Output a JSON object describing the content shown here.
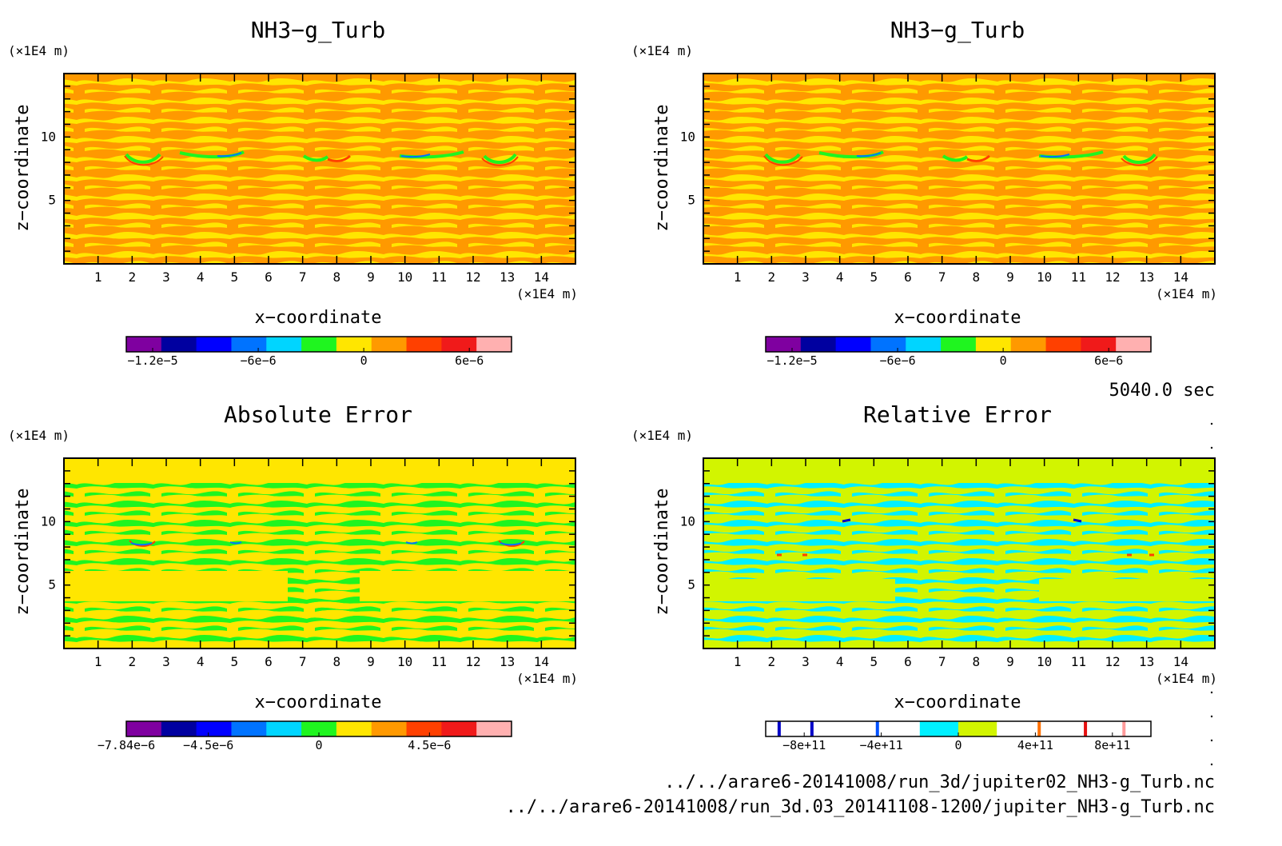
{
  "figure": {
    "time_label": "5040.0 sec",
    "file_lines": [
      "../../arare6-20141008/run_3d/jupiter02_NH3-g_Turb.nc",
      "../../arare6-20141008/run_3d.03_20141108-1200/jupiter_NH3-g_Turb.nc"
    ]
  },
  "chart_data": [
    {
      "type": "heatmap",
      "title": "NH3−g_Turb",
      "xlabel": "x−coordinate",
      "ylabel": "z−coordinate",
      "x_unit": "(×1E4 m)",
      "y_unit": "(×1E4 m)",
      "x_ticks": [
        "1",
        "2",
        "3",
        "4",
        "5",
        "6",
        "7",
        "8",
        "9",
        "10",
        "11",
        "12",
        "13",
        "14"
      ],
      "y_ticks": [
        "5",
        "10"
      ],
      "xlim": [
        0,
        15
      ],
      "ylim": [
        0,
        15
      ],
      "colorbar": {
        "colors": [
          "#7f00a0",
          "#0000a0",
          "#0000ff",
          "#0073ff",
          "#00d5ff",
          "#1ff51f",
          "#ffe600",
          "#ff9900",
          "#ff4000",
          "#f01a1a",
          "#ffb0b0"
        ],
        "tick_labels": [
          "−1.2e−5",
          "−6e−6",
          "0",
          "6e−6"
        ],
        "tick_values": [
          -1.2e-05,
          -6e-06,
          0,
          6e-06
        ],
        "range": [
          -1.35e-05,
          8.4e-06
        ]
      },
      "dominant_colors": [
        "#ff9900",
        "#ffe600"
      ],
      "feature_colors": [
        "#1ff51f",
        "#0073ff",
        "#ff4000"
      ]
    },
    {
      "type": "heatmap",
      "title": "NH3−g_Turb",
      "xlabel": "x−coordinate",
      "ylabel": "z−coordinate",
      "x_unit": "(×1E4 m)",
      "y_unit": "(×1E4 m)",
      "x_ticks": [
        "1",
        "2",
        "3",
        "4",
        "5",
        "6",
        "7",
        "8",
        "9",
        "10",
        "11",
        "12",
        "13",
        "14"
      ],
      "y_ticks": [
        "5",
        "10"
      ],
      "xlim": [
        0,
        15
      ],
      "ylim": [
        0,
        15
      ],
      "colorbar": {
        "colors": [
          "#7f00a0",
          "#0000a0",
          "#0000ff",
          "#0073ff",
          "#00d5ff",
          "#1ff51f",
          "#ffe600",
          "#ff9900",
          "#ff4000",
          "#f01a1a",
          "#ffb0b0"
        ],
        "tick_labels": [
          "−1.2e−5",
          "−6e−6",
          "0",
          "6e−6"
        ],
        "tick_values": [
          -1.2e-05,
          -6e-06,
          0,
          6e-06
        ],
        "range": [
          -1.35e-05,
          8.4e-06
        ]
      },
      "dominant_colors": [
        "#ff9900",
        "#ffe600"
      ],
      "feature_colors": [
        "#1ff51f",
        "#0073ff",
        "#ff4000"
      ]
    },
    {
      "type": "heatmap",
      "title": "Absolute Error",
      "xlabel": "x−coordinate",
      "ylabel": "z−coordinate",
      "x_unit": "(×1E4 m)",
      "y_unit": "(×1E4 m)",
      "x_ticks": [
        "1",
        "2",
        "3",
        "4",
        "5",
        "6",
        "7",
        "8",
        "9",
        "10",
        "11",
        "12",
        "13",
        "14"
      ],
      "y_ticks": [
        "5",
        "10"
      ],
      "xlim": [
        0,
        15
      ],
      "ylim": [
        0,
        15
      ],
      "colorbar": {
        "colors": [
          "#7f00a0",
          "#0000a0",
          "#0000ff",
          "#0073ff",
          "#00d5ff",
          "#1ff51f",
          "#ffe600",
          "#ff9900",
          "#ff4000",
          "#f01a1a",
          "#ffb0b0"
        ],
        "tick_labels": [
          "−7.84e−6",
          "−4.5e−6",
          "0",
          "4.5e−6"
        ],
        "tick_values": [
          -7.84e-06,
          -4.5e-06,
          0,
          4.5e-06
        ],
        "range": [
          -7.84e-06,
          7.84e-06
        ]
      },
      "dominant_colors": [
        "#ffe600",
        "#1ff51f"
      ],
      "feature_colors": [
        "#0073ff",
        "#ff4000"
      ]
    },
    {
      "type": "heatmap",
      "title": "Relative Error",
      "xlabel": "x−coordinate",
      "ylabel": "z−coordinate",
      "x_unit": "(×1E4 m)",
      "y_unit": "(×1E4 m)",
      "x_ticks": [
        "1",
        "2",
        "3",
        "4",
        "5",
        "6",
        "7",
        "8",
        "9",
        "10",
        "11",
        "12",
        "13",
        "14"
      ],
      "y_ticks": [
        "5",
        "10"
      ],
      "xlim": [
        0,
        15
      ],
      "ylim": [
        0,
        15
      ],
      "colorbar": {
        "colors": [
          "#ffffff",
          "#ffffff",
          "#ffffff",
          "#ffffff",
          "#00f0ff",
          "#d2f500",
          "#ffffff",
          "#ffffff",
          "#ffffff",
          "#ffffff"
        ],
        "tick_labels": [
          "−8e+11",
          "−4e+11",
          "0",
          "4e+11",
          "8e+11"
        ],
        "tick_values": [
          -800000000000.0,
          -400000000000.0,
          0,
          400000000000.0,
          800000000000.0
        ],
        "range": [
          -1000000000000.0,
          1000000000000.0
        ],
        "marks": [
          {
            "value": -930000000000.0,
            "color": "#0000c8"
          },
          {
            "value": -760000000000.0,
            "color": "#0000c8"
          },
          {
            "value": -420000000000.0,
            "color": "#0050ff"
          },
          {
            "value": 420000000000.0,
            "color": "#ff7000"
          },
          {
            "value": 660000000000.0,
            "color": "#e61010"
          },
          {
            "value": 860000000000.0,
            "color": "#ff9a9a"
          }
        ]
      },
      "dominant_colors": [
        "#d2f500",
        "#00f0ff"
      ],
      "feature_colors": [
        "#0000c8",
        "#ff4000"
      ]
    }
  ]
}
